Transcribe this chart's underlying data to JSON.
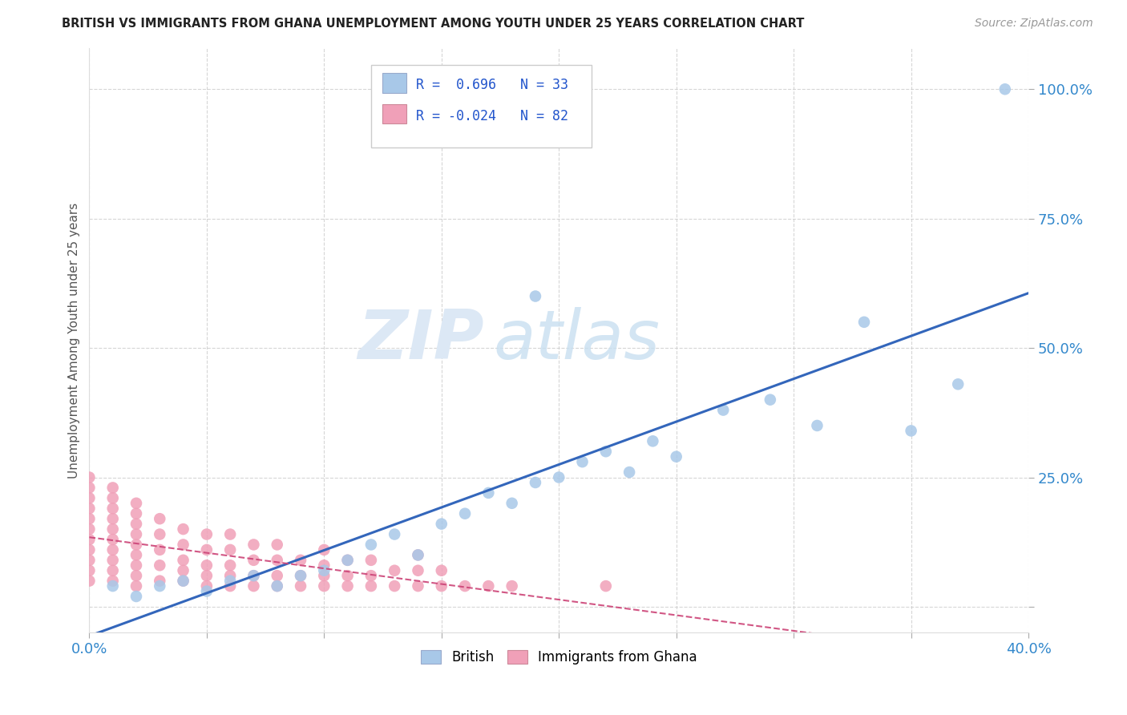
{
  "title": "BRITISH VS IMMIGRANTS FROM GHANA UNEMPLOYMENT AMONG YOUTH UNDER 25 YEARS CORRELATION CHART",
  "source": "Source: ZipAtlas.com",
  "ylabel": "Unemployment Among Youth under 25 years",
  "xlim": [
    0.0,
    0.4
  ],
  "ylim": [
    -0.05,
    1.08
  ],
  "xticks": [
    0.0,
    0.05,
    0.1,
    0.15,
    0.2,
    0.25,
    0.3,
    0.35,
    0.4
  ],
  "xticklabels": [
    "0.0%",
    "",
    "",
    "",
    "",
    "",
    "",
    "",
    "40.0%"
  ],
  "ytick_positions": [
    0.0,
    0.25,
    0.5,
    0.75,
    1.0
  ],
  "yticklabels": [
    "",
    "25.0%",
    "50.0%",
    "75.0%",
    "100.0%"
  ],
  "background_color": "#ffffff",
  "grid_color": "#cccccc",
  "watermark_zip": "ZIP",
  "watermark_atlas": "atlas",
  "legend_r_british": " 0.696",
  "legend_n_british": "33",
  "legend_r_ghana": "-0.024",
  "legend_n_ghana": "82",
  "british_color": "#a8c8e8",
  "ghana_color": "#f0a0b8",
  "british_line_color": "#3366bb",
  "ghana_line_color": "#cc4477",
  "british_scatter_x": [
    0.01,
    0.02,
    0.03,
    0.04,
    0.05,
    0.06,
    0.07,
    0.08,
    0.09,
    0.1,
    0.11,
    0.12,
    0.13,
    0.14,
    0.15,
    0.16,
    0.17,
    0.18,
    0.19,
    0.2,
    0.21,
    0.22,
    0.23,
    0.24,
    0.25,
    0.27,
    0.29,
    0.31,
    0.33,
    0.35,
    0.37,
    0.19,
    0.39
  ],
  "british_scatter_y": [
    0.04,
    0.02,
    0.04,
    0.05,
    0.03,
    0.05,
    0.06,
    0.04,
    0.06,
    0.07,
    0.09,
    0.12,
    0.14,
    0.1,
    0.16,
    0.18,
    0.22,
    0.2,
    0.24,
    0.25,
    0.28,
    0.3,
    0.26,
    0.32,
    0.29,
    0.38,
    0.4,
    0.35,
    0.55,
    0.34,
    0.43,
    0.6,
    1.0
  ],
  "ghana_scatter_x": [
    0.0,
    0.0,
    0.0,
    0.0,
    0.0,
    0.0,
    0.0,
    0.0,
    0.0,
    0.0,
    0.0,
    0.01,
    0.01,
    0.01,
    0.01,
    0.01,
    0.01,
    0.01,
    0.01,
    0.01,
    0.01,
    0.02,
    0.02,
    0.02,
    0.02,
    0.02,
    0.02,
    0.02,
    0.02,
    0.02,
    0.03,
    0.03,
    0.03,
    0.03,
    0.03,
    0.04,
    0.04,
    0.04,
    0.04,
    0.04,
    0.05,
    0.05,
    0.05,
    0.05,
    0.05,
    0.06,
    0.06,
    0.06,
    0.06,
    0.06,
    0.07,
    0.07,
    0.07,
    0.07,
    0.08,
    0.08,
    0.08,
    0.08,
    0.09,
    0.09,
    0.09,
    0.1,
    0.1,
    0.1,
    0.1,
    0.11,
    0.11,
    0.11,
    0.12,
    0.12,
    0.12,
    0.13,
    0.13,
    0.14,
    0.14,
    0.14,
    0.15,
    0.15,
    0.16,
    0.17,
    0.18,
    0.22
  ],
  "ghana_scatter_y": [
    0.05,
    0.07,
    0.09,
    0.11,
    0.13,
    0.15,
    0.17,
    0.19,
    0.21,
    0.23,
    0.25,
    0.05,
    0.07,
    0.09,
    0.11,
    0.13,
    0.15,
    0.17,
    0.19,
    0.21,
    0.23,
    0.04,
    0.06,
    0.08,
    0.1,
    0.12,
    0.14,
    0.16,
    0.18,
    0.2,
    0.05,
    0.08,
    0.11,
    0.14,
    0.17,
    0.05,
    0.07,
    0.09,
    0.12,
    0.15,
    0.04,
    0.06,
    0.08,
    0.11,
    0.14,
    0.04,
    0.06,
    0.08,
    0.11,
    0.14,
    0.04,
    0.06,
    0.09,
    0.12,
    0.04,
    0.06,
    0.09,
    0.12,
    0.04,
    0.06,
    0.09,
    0.04,
    0.06,
    0.08,
    0.11,
    0.04,
    0.06,
    0.09,
    0.04,
    0.06,
    0.09,
    0.04,
    0.07,
    0.04,
    0.07,
    0.1,
    0.04,
    0.07,
    0.04,
    0.04,
    0.04,
    0.04
  ]
}
